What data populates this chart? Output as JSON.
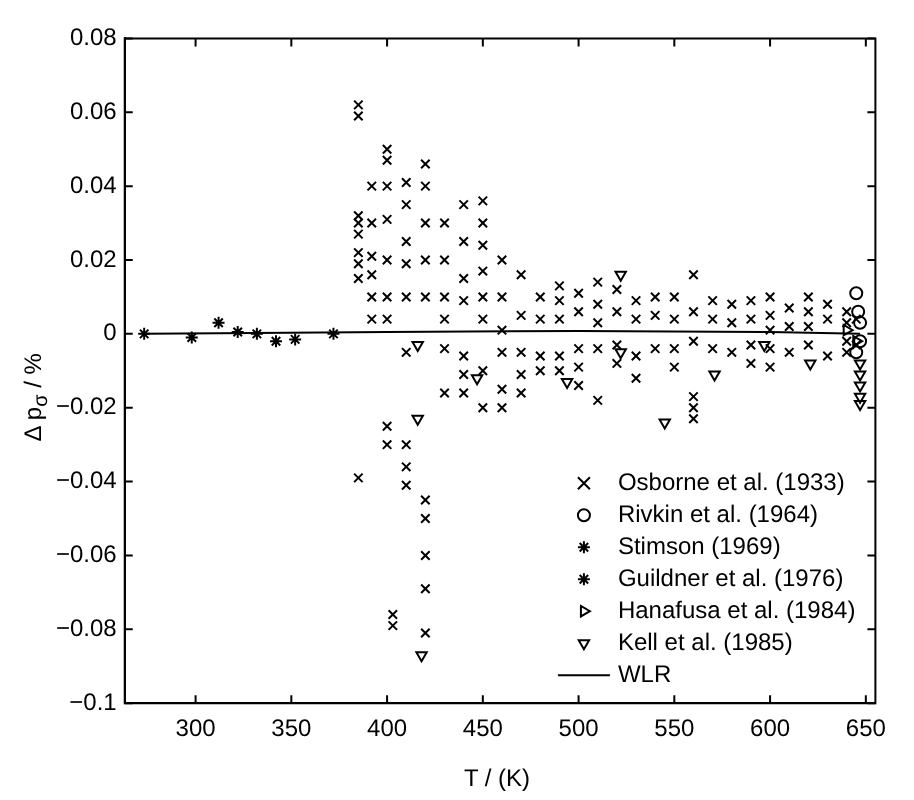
{
  "chart_data": {
    "type": "scatter",
    "xlabel": "T / (K)",
    "ylabel": "Δ p$_{σ}$ / %",
    "xlim": [
      263,
      655
    ],
    "ylim": [
      -0.1,
      0.08
    ],
    "xticks": [
      300,
      350,
      400,
      450,
      500,
      550,
      600,
      650
    ],
    "yticks": [
      {
        "value": -0.1,
        "label": "−0.1"
      },
      {
        "value": -0.08,
        "label": "−0.08"
      },
      {
        "value": -0.06,
        "label": "−0.06"
      },
      {
        "value": -0.04,
        "label": "−0.04"
      },
      {
        "value": -0.02,
        "label": "−0.02"
      },
      0,
      0.02,
      0.04,
      0.06,
      0.08
    ],
    "grid": false,
    "legend": "bottom right",
    "series": [
      {
        "name": "Osborne et al. (1933)",
        "color": "#000000",
        "marker": "cross",
        "x": [
          385,
          385,
          385,
          385,
          385,
          385,
          385,
          385,
          385,
          392,
          392,
          392,
          392,
          392,
          392,
          400,
          400,
          400,
          400,
          400,
          400,
          400,
          400,
          400,
          403,
          403,
          410,
          410,
          410,
          410,
          410,
          410,
          410,
          410,
          410,
          420,
          420,
          420,
          420,
          420,
          420,
          420,
          420,
          420,
          420,
          430,
          430,
          430,
          430,
          430,
          430,
          440,
          440,
          440,
          440,
          440,
          440,
          440,
          450,
          450,
          450,
          450,
          450,
          450,
          450,
          450,
          460,
          460,
          460,
          460,
          460,
          460,
          470,
          470,
          470,
          470,
          470,
          480,
          480,
          480,
          480,
          490,
          490,
          490,
          490,
          490,
          500,
          500,
          500,
          500,
          500,
          510,
          510,
          510,
          510,
          510,
          520,
          520,
          520,
          520,
          530,
          530,
          530,
          530,
          540,
          540,
          540,
          550,
          550,
          550,
          550,
          560,
          560,
          560,
          560,
          560,
          560,
          570,
          570,
          570,
          580,
          580,
          580,
          590,
          590,
          590,
          590,
          600,
          600,
          600,
          600,
          600,
          610,
          610,
          610,
          620,
          620,
          620,
          620,
          630,
          630,
          630,
          640,
          640,
          640,
          640,
          645,
          645
        ],
        "values": [
          0.062,
          0.059,
          0.032,
          0.03,
          0.027,
          0.022,
          0.019,
          0.015,
          -0.039,
          0.04,
          0.03,
          0.021,
          0.016,
          0.01,
          0.004,
          0.05,
          0.047,
          0.04,
          0.031,
          0.02,
          0.01,
          0.004,
          -0.025,
          -0.03,
          -0.076,
          -0.079,
          0.041,
          0.035,
          0.025,
          0.019,
          0.01,
          -0.005,
          -0.03,
          -0.036,
          -0.041,
          0.046,
          0.04,
          0.03,
          0.02,
          0.01,
          -0.045,
          -0.05,
          -0.06,
          -0.069,
          -0.081,
          0.03,
          0.02,
          0.01,
          0.004,
          -0.004,
          -0.016,
          0.035,
          0.025,
          0.015,
          0.009,
          -0.006,
          -0.011,
          -0.016,
          0.036,
          0.03,
          0.024,
          0.017,
          0.01,
          0.004,
          -0.01,
          -0.02,
          0.02,
          0.01,
          0.001,
          -0.005,
          -0.015,
          -0.02,
          0.016,
          0.005,
          -0.005,
          -0.011,
          -0.016,
          0.01,
          0.004,
          -0.006,
          -0.01,
          0.013,
          0.009,
          0.004,
          -0.006,
          -0.01,
          0.011,
          0.006,
          -0.004,
          -0.009,
          -0.014,
          0.014,
          0.008,
          0.003,
          -0.004,
          -0.018,
          0.012,
          0.006,
          -0.003,
          -0.008,
          0.009,
          0.004,
          -0.006,
          -0.012,
          0.01,
          0.005,
          -0.004,
          0.01,
          0.004,
          -0.004,
          -0.009,
          0.016,
          0.006,
          -0.002,
          -0.017,
          -0.02,
          -0.023,
          0.009,
          0.004,
          -0.004,
          0.008,
          0.003,
          -0.005,
          0.009,
          0.004,
          -0.003,
          -0.008,
          0.01,
          0.005,
          0.001,
          -0.004,
          -0.009,
          0.007,
          0.002,
          -0.005,
          0.01,
          0.006,
          0.002,
          -0.003,
          0.008,
          0.004,
          -0.006,
          0.006,
          0.003,
          -0.002,
          -0.005,
          0.004,
          -0.003
        ]
      },
      {
        "name": "Rivkin et al. (1964)",
        "color": "#000000",
        "marker": "circle",
        "x": [
          645,
          646,
          647,
          647,
          645
        ],
        "values": [
          0.011,
          0.006,
          0.003,
          -0.002,
          -0.005
        ]
      },
      {
        "name": "Stimson (1969)",
        "color": "#000000",
        "marker": "cross",
        "x": [
          298,
          312,
          322,
          332,
          342,
          352,
          372
        ],
        "values": [
          -0.001,
          0.003,
          0.0005,
          0,
          -0.002,
          -0.0015,
          0
        ]
      },
      {
        "name": "Guildner et al. (1976)",
        "color": "#000000",
        "marker": "cross",
        "x": [
          273.16
        ],
        "values": [
          0
        ]
      },
      {
        "name": "Hanafusa et al. (1984)",
        "color": "#000000",
        "marker": "triangle",
        "x": [
          640,
          645
        ],
        "values": [
          0.001,
          -0.002
        ]
      },
      {
        "name": "Kell et al. (1985)",
        "color": "#000000",
        "marker": "triangle",
        "x": [
          416,
          416,
          418,
          447,
          494,
          522,
          522,
          545,
          571,
          597,
          621,
          647,
          647,
          647,
          647,
          647
        ],
        "values": [
          -0.003,
          -0.023,
          -0.087,
          -0.012,
          -0.013,
          0.016,
          -0.005,
          -0.024,
          -0.011,
          -0.003,
          -0.008,
          -0.008,
          -0.011,
          -0.014,
          -0.017,
          -0.019
        ]
      },
      {
        "name": "WLR",
        "type": "line",
        "color": "#000000",
        "marker": "none",
        "line_style": "solid",
        "x": [
          273.16,
          400,
          500,
          600,
          647
        ],
        "values": [
          0,
          0.0005,
          0.0008,
          0.0005,
          0
        ]
      }
    ]
  }
}
